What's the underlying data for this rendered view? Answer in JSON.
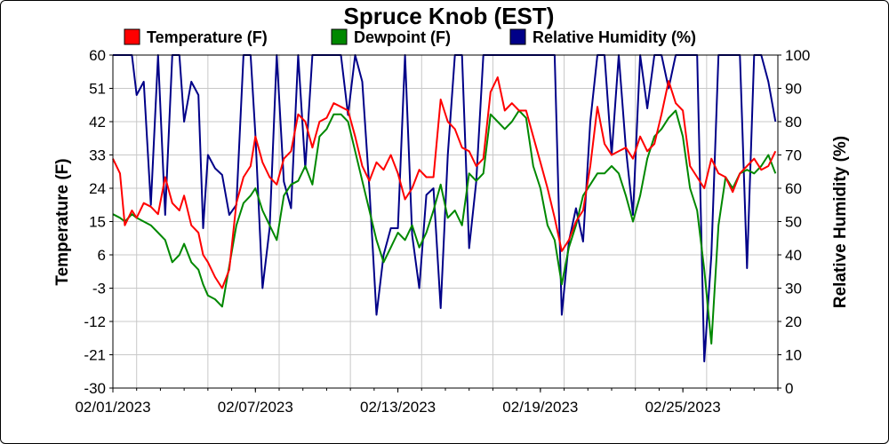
{
  "chart_data": {
    "type": "line",
    "title": "Spruce Knob (EST)",
    "ylabel": "Temperature (F)",
    "y2label": "Relative Humidity (%)",
    "ylim": [
      -30,
      60
    ],
    "y2lim": [
      0,
      100
    ],
    "yticks": [
      60,
      51,
      42,
      33,
      24,
      15,
      6,
      -3,
      -12,
      -21,
      -30
    ],
    "y2ticks": [
      100,
      90,
      80,
      70,
      60,
      50,
      40,
      30,
      20,
      10,
      0
    ],
    "xlim_day": [
      0,
      28
    ],
    "xticks": [
      {
        "day": 0,
        "label": "02/01/2023"
      },
      {
        "day": 6,
        "label": "02/07/2023"
      },
      {
        "day": 12,
        "label": "02/13/2023"
      },
      {
        "day": 18,
        "label": "02/19/2023"
      },
      {
        "day": 24,
        "label": "02/25/2023"
      }
    ],
    "grid": true,
    "legend_position": "top",
    "series": [
      {
        "name": "Temperature (F)",
        "axis": "left",
        "color": "#ff0000",
        "x": [
          0,
          0.3,
          0.5,
          0.8,
          1.0,
          1.3,
          1.6,
          1.9,
          2.2,
          2.5,
          2.8,
          3.0,
          3.3,
          3.6,
          3.8,
          4.0,
          4.3,
          4.6,
          4.9,
          5.2,
          5.5,
          5.8,
          6.0,
          6.3,
          6.6,
          6.9,
          7.2,
          7.5,
          7.8,
          8.1,
          8.4,
          8.7,
          9.0,
          9.3,
          9.6,
          9.9,
          10.2,
          10.5,
          10.8,
          11.1,
          11.4,
          11.7,
          12.0,
          12.3,
          12.6,
          12.9,
          13.2,
          13.5,
          13.8,
          14.1,
          14.4,
          14.7,
          15.0,
          15.3,
          15.6,
          15.9,
          16.2,
          16.5,
          16.8,
          17.1,
          17.4,
          17.7,
          18.0,
          18.3,
          18.6,
          18.9,
          19.2,
          19.5,
          19.8,
          20.1,
          20.4,
          20.7,
          21.0,
          21.3,
          21.6,
          21.9,
          22.2,
          22.5,
          22.8,
          23.1,
          23.4,
          23.7,
          24.0,
          24.3,
          24.6,
          24.9,
          25.2,
          25.5,
          25.8,
          26.1,
          26.4,
          26.7,
          27.0,
          27.3,
          27.6,
          27.9
        ],
        "y": [
          32,
          28,
          14,
          18,
          16,
          20,
          19,
          17,
          27,
          20,
          18,
          22,
          14,
          12,
          6,
          4,
          0,
          -3,
          2,
          20,
          27,
          30,
          38,
          31,
          27,
          25,
          32,
          34,
          44,
          42,
          35,
          42,
          43,
          47,
          46,
          45,
          38,
          30,
          26,
          31,
          29,
          33,
          28,
          21,
          24,
          29,
          27,
          27,
          48,
          42,
          40,
          35,
          34,
          30,
          32,
          50,
          54,
          45,
          47,
          45,
          45,
          38,
          31,
          24,
          16,
          7,
          10,
          15,
          18,
          30,
          46,
          36,
          33,
          34,
          35,
          32,
          38,
          34,
          36,
          44,
          53,
          47,
          45,
          30,
          27,
          24,
          32,
          28,
          27,
          23,
          28,
          30,
          32,
          29,
          30,
          34
        ],
        "_note_removed": null
      },
      {
        "name": "Dewpoint (F)",
        "axis": "left",
        "color": "#008800",
        "x": [
          0,
          0.3,
          0.5,
          0.8,
          1.0,
          1.3,
          1.6,
          1.9,
          2.2,
          2.5,
          2.8,
          3.0,
          3.3,
          3.6,
          3.8,
          4.0,
          4.3,
          4.6,
          4.9,
          5.2,
          5.5,
          5.8,
          6.0,
          6.3,
          6.6,
          6.9,
          7.2,
          7.5,
          7.8,
          8.1,
          8.4,
          8.7,
          9.0,
          9.3,
          9.6,
          9.9,
          10.2,
          10.5,
          10.8,
          11.1,
          11.4,
          11.7,
          12.0,
          12.3,
          12.6,
          12.9,
          13.2,
          13.5,
          13.8,
          14.1,
          14.4,
          14.7,
          15.0,
          15.3,
          15.6,
          15.9,
          16.2,
          16.5,
          16.8,
          17.1,
          17.4,
          17.7,
          18.0,
          18.3,
          18.6,
          18.9,
          19.2,
          19.5,
          19.8,
          20.1,
          20.4,
          20.7,
          21.0,
          21.3,
          21.6,
          21.9,
          22.2,
          22.5,
          22.8,
          23.1,
          23.4,
          23.7,
          24.0,
          24.3,
          24.6,
          24.9,
          25.2,
          25.5,
          25.8,
          26.1,
          26.4,
          26.7,
          27.0,
          27.3,
          27.6,
          27.9
        ],
        "y": [
          17,
          16,
          15,
          17,
          16,
          15,
          14,
          12,
          10,
          4,
          6,
          9,
          4,
          2,
          -2,
          -5,
          -6,
          -8,
          3,
          14,
          20,
          22,
          24,
          18,
          14,
          10,
          22,
          25,
          26,
          30,
          25,
          38,
          40,
          44,
          44,
          42,
          34,
          26,
          18,
          10,
          4,
          8,
          12,
          10,
          14,
          8,
          12,
          18,
          25,
          16,
          18,
          14,
          28,
          26,
          28,
          44,
          42,
          40,
          42,
          45,
          43,
          30,
          24,
          14,
          10,
          -2,
          8,
          14,
          22,
          25,
          28,
          28,
          30,
          28,
          22,
          15,
          22,
          32,
          38,
          40,
          43,
          45,
          38,
          24,
          18,
          2,
          -18,
          14,
          27,
          24,
          28,
          29,
          28,
          30,
          33,
          28
        ]
      },
      {
        "name": "Relative Humidity (%)",
        "axis": "right",
        "color": "#000088",
        "x": [
          0,
          0.3,
          0.5,
          0.8,
          1.0,
          1.3,
          1.6,
          1.9,
          2.2,
          2.5,
          2.8,
          3.0,
          3.3,
          3.6,
          3.8,
          4.0,
          4.3,
          4.6,
          4.9,
          5.2,
          5.5,
          5.8,
          6.0,
          6.3,
          6.6,
          6.9,
          7.2,
          7.5,
          7.8,
          8.1,
          8.4,
          8.7,
          9.0,
          9.3,
          9.6,
          9.9,
          10.2,
          10.5,
          10.8,
          11.1,
          11.4,
          11.7,
          12.0,
          12.3,
          12.6,
          12.9,
          13.2,
          13.5,
          13.8,
          14.1,
          14.4,
          14.7,
          15.0,
          15.3,
          15.6,
          15.9,
          16.2,
          16.5,
          16.8,
          17.1,
          17.4,
          17.7,
          18.0,
          18.3,
          18.6,
          18.9,
          19.2,
          19.5,
          19.8,
          20.1,
          20.4,
          20.7,
          21.0,
          21.3,
          21.6,
          21.9,
          22.2,
          22.5,
          22.8,
          23.1,
          23.4,
          23.7,
          24.0,
          24.3,
          24.6,
          24.9,
          25.2,
          25.5,
          25.8,
          26.1,
          26.4,
          26.7,
          27.0,
          27.3,
          27.6,
          27.9
        ],
        "y": [
          100,
          100,
          100,
          100,
          88,
          92,
          55,
          100,
          52,
          100,
          100,
          80,
          92,
          88,
          48,
          70,
          66,
          64,
          52,
          55,
          100,
          100,
          76,
          30,
          48,
          100,
          62,
          54,
          100,
          66,
          100,
          100,
          100,
          100,
          100,
          82,
          100,
          92,
          60,
          22,
          40,
          48,
          48,
          100,
          46,
          30,
          58,
          60,
          24,
          70,
          100,
          100,
          42,
          62,
          100,
          100,
          100,
          100,
          100,
          100,
          100,
          100,
          100,
          100,
          100,
          22,
          44,
          54,
          44,
          80,
          100,
          100,
          70,
          100,
          72,
          52,
          100,
          84,
          100,
          100,
          90,
          100,
          100,
          100,
          100,
          8,
          40,
          100,
          100,
          100,
          100,
          36,
          100,
          100,
          92,
          80
        ]
      }
    ]
  }
}
